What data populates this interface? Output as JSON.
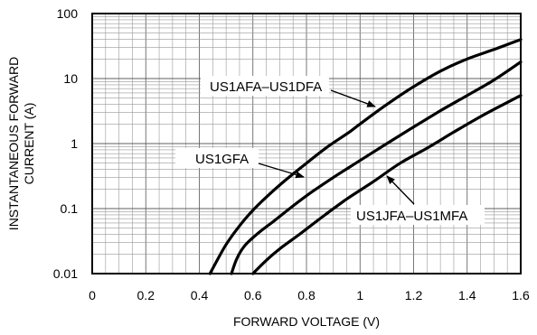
{
  "chart_data": {
    "type": "line",
    "xlabel": "FORWARD VOLTAGE (V)",
    "ylabel_lines": [
      "INSTANTANEOUS FORWARD",
      "CURRENT (A)"
    ],
    "xlim": [
      0,
      1.6
    ],
    "ylim": [
      0.01,
      100
    ],
    "y_scale": "log",
    "grid": true,
    "x_ticks": [
      0,
      0.2,
      0.4,
      0.6,
      0.8,
      1,
      1.2,
      1.4,
      1.6
    ],
    "y_ticks": [
      0.01,
      0.1,
      1,
      10,
      100
    ],
    "x_tick_labels": [
      "0",
      "0.2",
      "0.4",
      "0.6",
      "0.8",
      "1",
      "1.2",
      "1.4",
      "1.6"
    ],
    "y_tick_labels": [
      "0.01",
      "0.1",
      "1",
      "10",
      "100"
    ],
    "series": [
      {
        "name": "US1AFA–US1DFA",
        "x": [
          0.44,
          0.47,
          0.5,
          0.54,
          0.59,
          0.65,
          0.72,
          0.8,
          0.88,
          0.96,
          1.0,
          1.1,
          1.2,
          1.3,
          1.4,
          1.5,
          1.6
        ],
        "y": [
          0.01,
          0.017,
          0.028,
          0.048,
          0.085,
          0.15,
          0.27,
          0.5,
          0.9,
          1.5,
          2.0,
          4.0,
          7.5,
          13,
          20,
          28,
          40
        ]
      },
      {
        "name": "US1GFA",
        "x": [
          0.52,
          0.54,
          0.57,
          0.62,
          0.68,
          0.75,
          0.82,
          0.9,
          1.0,
          1.1,
          1.2,
          1.3,
          1.4,
          1.5,
          1.6
        ],
        "y": [
          0.01,
          0.017,
          0.027,
          0.042,
          0.065,
          0.11,
          0.18,
          0.3,
          0.55,
          1.0,
          1.8,
          3.2,
          5.5,
          9.5,
          18
        ]
      },
      {
        "name": "US1JFA–US1MFA",
        "x": [
          0.6,
          0.65,
          0.7,
          0.78,
          0.86,
          0.95,
          1.05,
          1.15,
          1.25,
          1.35,
          1.45,
          1.55,
          1.6
        ],
        "y": [
          0.01,
          0.016,
          0.024,
          0.042,
          0.075,
          0.14,
          0.26,
          0.5,
          0.85,
          1.5,
          2.6,
          4.3,
          5.5
        ]
      }
    ],
    "annotations": [
      "US1AFA–US1DFA",
      "US1GFA",
      "US1JFA–US1MFA"
    ]
  }
}
